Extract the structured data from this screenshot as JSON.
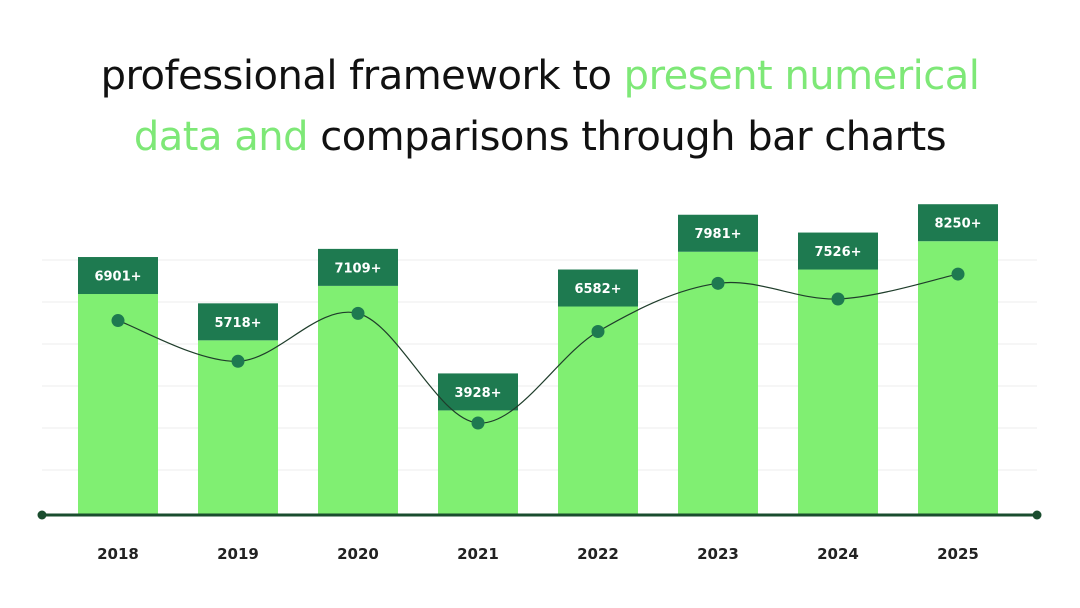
{
  "title": {
    "line1_a": "professional framework to ",
    "line1_b": "present numerical",
    "line2_a": "data and",
    "line2_b": " comparisons through bar charts"
  },
  "colors": {
    "bar": "#80ef72",
    "cap": "#1e7a50",
    "line_marker": "#1e7a50",
    "axis": "#1a4d2e",
    "highlight": "#7ee877"
  },
  "chart_data": {
    "type": "bar",
    "categories": [
      "2018",
      "2019",
      "2020",
      "2021",
      "2022",
      "2023",
      "2024",
      "2025"
    ],
    "values": [
      6901,
      5718,
      7109,
      3928,
      6582,
      7981,
      7526,
      8250
    ],
    "labels": [
      "6901+",
      "5718+",
      "7109+",
      "3928+",
      "6582+",
      "7981+",
      "7526+",
      "8250+"
    ],
    "overlay": "line",
    "grid": true,
    "legend": "none"
  }
}
